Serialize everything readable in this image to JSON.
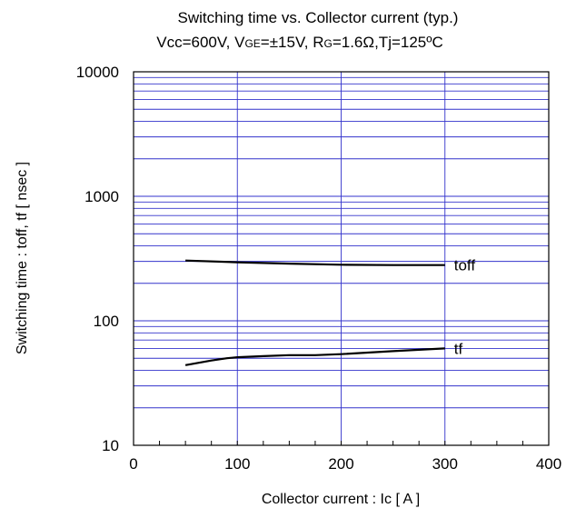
{
  "chart_data": {
    "type": "line",
    "title": "Switching time vs. Collector current (typ.)",
    "subtitle": {
      "vcc": "Vcc=600V, V",
      "vge_sub": "GE",
      "vge_val": "=±15V, R",
      "rg_sub": "G",
      "rg_val": "=1.6Ω,Tj=125ºC"
    },
    "xlabel": "Collector current : Ic [ A ]",
    "ylabel": "Switching time : toff, tf [ nsec ]",
    "xlim": [
      0,
      400
    ],
    "ylim": [
      10,
      10000
    ],
    "yscale": "log",
    "grid": true,
    "x_ticks": [
      "0",
      "100",
      "200",
      "300",
      "400"
    ],
    "y_ticks": [
      "10",
      "100",
      "1000",
      "10000"
    ],
    "series": [
      {
        "name": "toff",
        "x": [
          50,
          100,
          150,
          200,
          250,
          300
        ],
        "y": [
          305,
          295,
          288,
          282,
          280,
          280
        ]
      },
      {
        "name": "tf",
        "x": [
          50,
          75,
          90,
          100,
          125,
          150,
          175,
          200,
          250,
          300
        ],
        "y": [
          44,
          48,
          50,
          51,
          52,
          53,
          53,
          54,
          57,
          60
        ]
      }
    ],
    "colors": {
      "grid": "#3333cc",
      "series": "#000000",
      "frame": "#000000"
    }
  }
}
